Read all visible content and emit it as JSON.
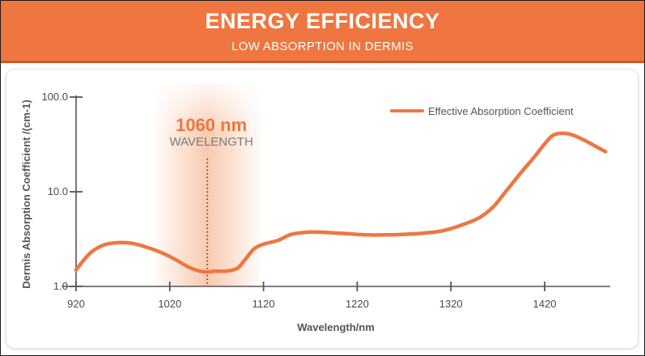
{
  "header": {
    "title": "ENERGY EFFICIENCY",
    "subtitle": "LOW ABSORPTION IN DERMIS"
  },
  "colors": {
    "accent": "#ef7640",
    "highlight_band": "#f7b894",
    "axis": "#555555"
  },
  "highlight": {
    "wavelength": 1060,
    "value_label": "1060 nm",
    "caption": "WAVELENGTH"
  },
  "chart_data": {
    "type": "line",
    "xlabel": "Wavelength/nm",
    "ylabel": "Dermis Absorption Coefficient /(cm-1)",
    "xlim": [
      910,
      1490
    ],
    "ylim": [
      1.0,
      100.0
    ],
    "yscale": "log",
    "x_ticks": [
      920,
      1020,
      1120,
      1220,
      1320,
      1420
    ],
    "y_ticks": [
      1.0,
      10.0,
      100.0
    ],
    "y_tick_labels": [
      "1.0",
      "10.0",
      "100.0"
    ],
    "grid": false,
    "legend_position": "top-right",
    "series": [
      {
        "name": "Effective Absorption Coefficient",
        "color": "#ef7640",
        "x": [
          920,
          935,
          950,
          965,
          980,
          995,
          1010,
          1025,
          1040,
          1052,
          1060,
          1068,
          1080,
          1092,
          1100,
          1110,
          1120,
          1135,
          1150,
          1170,
          1190,
          1210,
          1230,
          1250,
          1270,
          1290,
          1310,
          1330,
          1350,
          1365,
          1380,
          1395,
          1410,
          1420,
          1430,
          1445,
          1460,
          1475,
          1485
        ],
        "y": [
          1.5,
          2.25,
          2.75,
          2.9,
          2.85,
          2.6,
          2.3,
          1.95,
          1.6,
          1.45,
          1.42,
          1.45,
          1.45,
          1.55,
          1.9,
          2.5,
          2.8,
          3.05,
          3.55,
          3.75,
          3.7,
          3.6,
          3.5,
          3.5,
          3.55,
          3.65,
          3.85,
          4.4,
          5.3,
          6.9,
          10.5,
          16.0,
          24.0,
          32.0,
          40.0,
          41.0,
          36.0,
          30.0,
          26.5
        ]
      }
    ]
  }
}
